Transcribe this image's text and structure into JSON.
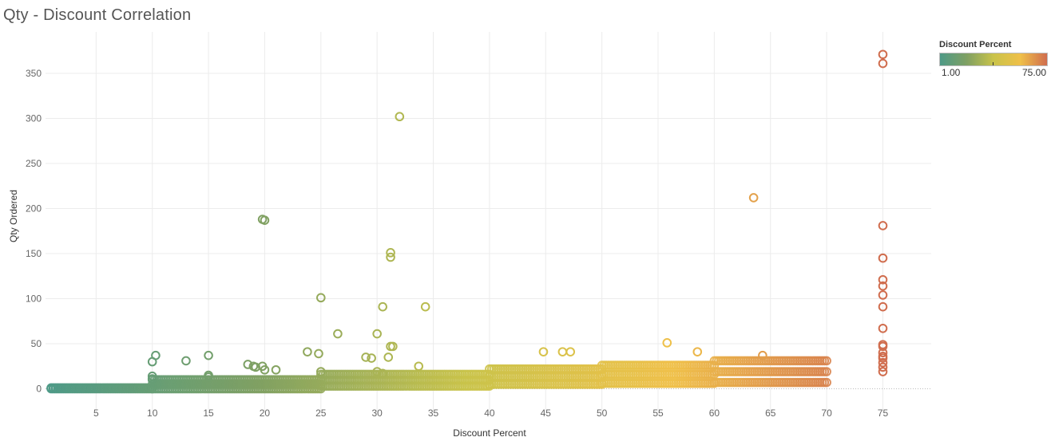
{
  "chart_data": {
    "type": "scatter",
    "title": "Qty - Discount Correlation",
    "xlabel": "Discount Percent",
    "ylabel": "Qty Ordered",
    "xlim": [
      0.5,
      79.3
    ],
    "ylim": [
      -27,
      396
    ],
    "xticks": [
      5,
      10,
      15,
      20,
      25,
      30,
      35,
      40,
      45,
      50,
      55,
      60,
      65,
      70,
      75
    ],
    "yticks": [
      0,
      50,
      100,
      150,
      200,
      250,
      300,
      350
    ],
    "grid": true,
    "marker": "hollow-circle",
    "color_legend": {
      "title": "Discount Percent",
      "min_label": "1.00",
      "max_label": "75.00",
      "min": 1,
      "max": 75,
      "colors": [
        "#4e9a87",
        "#7fa063",
        "#c9c34a",
        "#efc049",
        "#d06d4e"
      ],
      "placement": "top-right"
    },
    "points": [
      [
        10,
        30
      ],
      [
        10.3,
        37
      ],
      [
        10,
        14
      ],
      [
        10,
        11
      ],
      [
        13,
        31
      ],
      [
        15,
        37
      ],
      [
        15,
        15
      ],
      [
        15,
        13
      ],
      [
        18.5,
        27
      ],
      [
        19,
        25
      ],
      [
        19.2,
        24
      ],
      [
        19.8,
        188
      ],
      [
        20,
        187
      ],
      [
        19.8,
        25
      ],
      [
        20,
        21
      ],
      [
        21,
        21
      ],
      [
        23.8,
        41
      ],
      [
        24.8,
        39
      ],
      [
        25,
        101
      ],
      [
        25,
        19
      ],
      [
        26.5,
        61
      ],
      [
        29,
        35
      ],
      [
        29.5,
        34
      ],
      [
        30,
        61
      ],
      [
        30.5,
        91
      ],
      [
        30,
        19
      ],
      [
        30.5,
        17
      ],
      [
        31.2,
        151
      ],
      [
        31.2,
        146
      ],
      [
        31.2,
        47
      ],
      [
        31.4,
        47
      ],
      [
        31,
        35
      ],
      [
        32,
        302
      ],
      [
        33.7,
        25
      ],
      [
        34.3,
        91
      ],
      [
        44.8,
        41
      ],
      [
        46.5,
        41
      ],
      [
        47.2,
        41
      ],
      [
        55.8,
        51
      ],
      [
        58.5,
        41
      ],
      [
        63.5,
        212
      ],
      [
        64.3,
        37
      ],
      [
        75,
        371
      ],
      [
        75,
        361
      ],
      [
        75,
        181
      ],
      [
        75,
        145
      ],
      [
        75,
        121
      ],
      [
        75,
        114
      ],
      [
        75,
        104
      ],
      [
        75,
        91
      ],
      [
        75,
        67
      ],
      [
        75,
        49
      ],
      [
        75,
        47
      ],
      [
        75,
        40
      ],
      [
        75,
        36
      ],
      [
        75,
        34
      ],
      [
        75,
        29
      ],
      [
        75,
        24
      ],
      [
        75,
        19
      ]
    ],
    "bands": [
      {
        "x": [
          1,
          10
        ],
        "y": [
          0,
          1
        ]
      },
      {
        "x": [
          10,
          25
        ],
        "y": [
          0,
          10
        ]
      },
      {
        "x": [
          25,
          40
        ],
        "y": [
          3,
          16
        ]
      },
      {
        "x": [
          40,
          50
        ],
        "y": [
          5,
          22
        ]
      },
      {
        "x": [
          50,
          60
        ],
        "y": [
          6,
          26
        ]
      },
      {
        "x": [
          60,
          70
        ],
        "y": [
          7,
          31
        ]
      }
    ]
  }
}
